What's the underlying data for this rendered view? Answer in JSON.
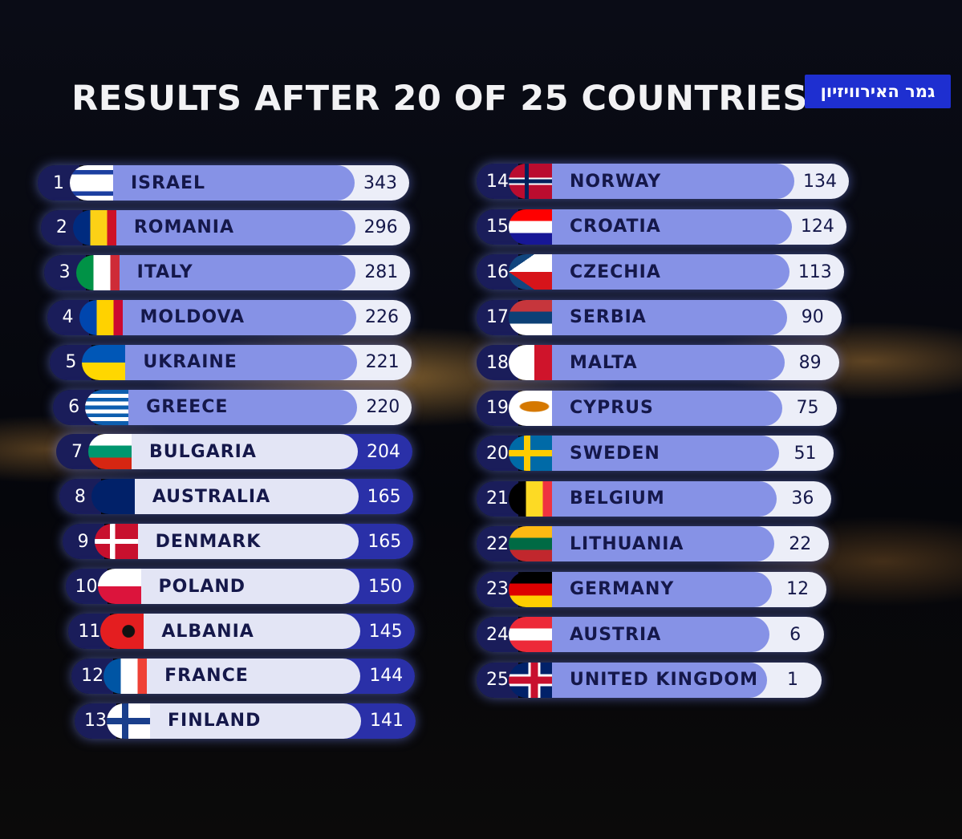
{
  "header": {
    "title": "RESULTS AFTER 20 OF 25 COUNTRIES",
    "channel_logo": "גמר האירוויזיון"
  },
  "results": [
    {
      "rank": 1,
      "country": "ISRAEL",
      "points": 343
    },
    {
      "rank": 2,
      "country": "ROMANIA",
      "points": 296
    },
    {
      "rank": 3,
      "country": "ITALY",
      "points": 281
    },
    {
      "rank": 4,
      "country": "MOLDOVA",
      "points": 226
    },
    {
      "rank": 5,
      "country": "UKRAINE",
      "points": 221
    },
    {
      "rank": 6,
      "country": "GREECE",
      "points": 220
    },
    {
      "rank": 7,
      "country": "BULGARIA",
      "points": 204
    },
    {
      "rank": 8,
      "country": "AUSTRALIA",
      "points": 165
    },
    {
      "rank": 9,
      "country": "DENMARK",
      "points": 165
    },
    {
      "rank": 10,
      "country": "POLAND",
      "points": 150
    },
    {
      "rank": 11,
      "country": "ALBANIA",
      "points": 145
    },
    {
      "rank": 12,
      "country": "FRANCE",
      "points": 144
    },
    {
      "rank": 13,
      "country": "FINLAND",
      "points": 141
    },
    {
      "rank": 14,
      "country": "NORWAY",
      "points": 134
    },
    {
      "rank": 15,
      "country": "CROATIA",
      "points": 124
    },
    {
      "rank": 16,
      "country": "CZECHIA",
      "points": 113
    },
    {
      "rank": 17,
      "country": "SERBIA",
      "points": 90
    },
    {
      "rank": 18,
      "country": "MALTA",
      "points": 89
    },
    {
      "rank": 19,
      "country": "CYPRUS",
      "points": 75
    },
    {
      "rank": 20,
      "country": "SWEDEN",
      "points": 51
    },
    {
      "rank": 21,
      "country": "BELGIUM",
      "points": 36
    },
    {
      "rank": 22,
      "country": "LITHUANIA",
      "points": 22
    },
    {
      "rank": 23,
      "country": "GERMANY",
      "points": 12
    },
    {
      "rank": 24,
      "country": "AUSTRIA",
      "points": 6
    },
    {
      "rank": 25,
      "country": "UNITED KINGDOM",
      "points": 1
    }
  ]
}
